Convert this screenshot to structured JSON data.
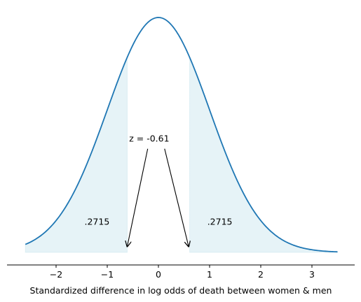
{
  "chart_data": {
    "type": "area",
    "title": "",
    "xlabel": "Standardized difference in log odds of death between women & men",
    "ylabel": "",
    "xlim": [
      -2.7,
      3.8
    ],
    "ylim": [
      0,
      0.4
    ],
    "xticks": [
      -2,
      -1,
      0,
      1,
      2,
      3
    ],
    "xtick_labels": [
      "−2",
      "−1",
      "0",
      "1",
      "2",
      "3"
    ],
    "grid": false,
    "legend": "none",
    "curve": {
      "type": "standard-normal-density",
      "x_start": -2.6,
      "x_end": 3.5,
      "color": "#1f77b4"
    },
    "shaded_regions": [
      {
        "name": "left-tail",
        "x_from": -2.6,
        "x_to": -0.61,
        "label": ".2715",
        "label_x": -1.2,
        "label_y": 0.047,
        "color": "#add8e6"
      },
      {
        "name": "right-tail",
        "x_from": 0.61,
        "x_to": 3.5,
        "label": ".2715",
        "label_x": 1.2,
        "label_y": 0.047,
        "color": "#add8e6"
      }
    ],
    "annotation": {
      "text": "z = -0.61",
      "text_x": -0.18,
      "text_y": 0.188,
      "arrows": [
        {
          "from_x": -0.21,
          "from_y": 0.176,
          "to_x": -0.61,
          "to_y": 0.01
        },
        {
          "from_x": 0.12,
          "from_y": 0.176,
          "to_x": 0.59,
          "to_y": 0.01
        }
      ]
    }
  }
}
